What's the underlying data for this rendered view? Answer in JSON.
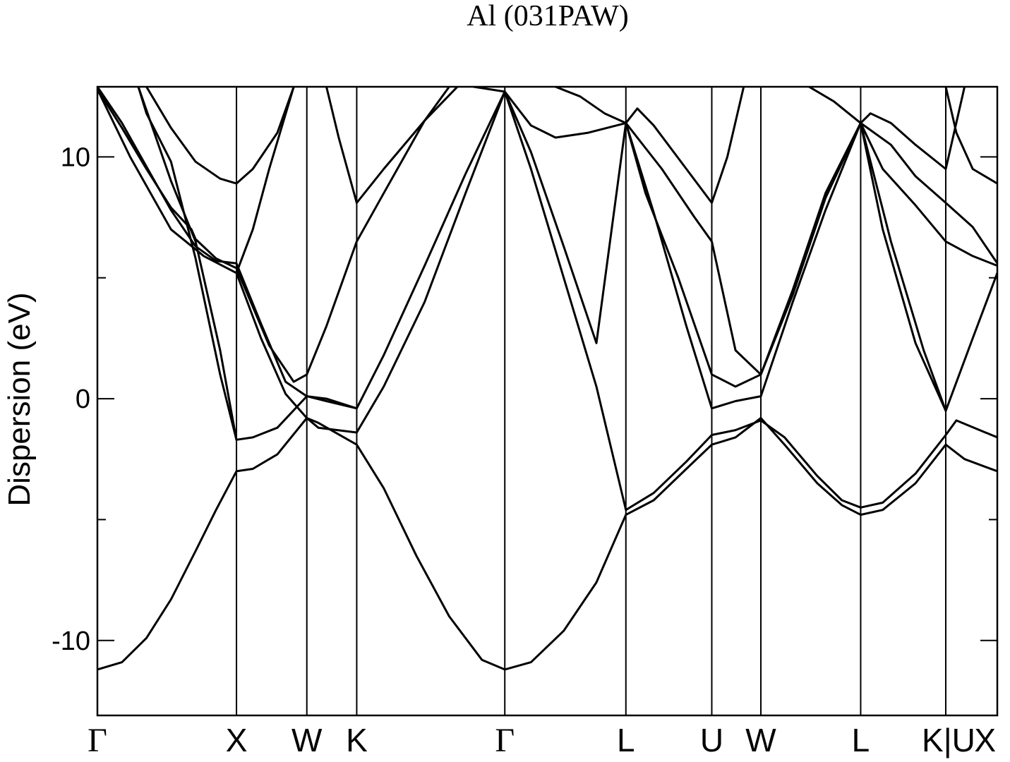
{
  "chart_data": {
    "type": "line",
    "title": "Al (031PAW)",
    "xlabel": "",
    "ylabel": "Dispersion (eV)",
    "xlim": [
      0,
      11.0
    ],
    "ylim": [
      -13.1,
      12.9
    ],
    "yticks": [
      -10,
      0,
      10
    ],
    "grid": false,
    "legend": "none",
    "line_color": "#000000",
    "kpoints": [
      {
        "label": "Γ",
        "x": 0.0
      },
      {
        "label": "X",
        "x": 1.7
      },
      {
        "label": "W",
        "x": 2.56
      },
      {
        "label": "K",
        "x": 3.17
      },
      {
        "label": "Γ",
        "x": 4.98
      },
      {
        "label": "L",
        "x": 6.46
      },
      {
        "label": "U",
        "x": 7.51
      },
      {
        "label": "W",
        "x": 8.11
      },
      {
        "label": "L",
        "x": 9.33
      },
      {
        "label": "K|U",
        "x": 10.37
      },
      {
        "label": "X",
        "x": 11.0
      }
    ],
    "series": [
      {
        "points": [
          [
            0.0,
            -11.2
          ],
          [
            0.3,
            -10.9
          ],
          [
            0.6,
            -9.9
          ],
          [
            0.9,
            -8.3
          ],
          [
            1.2,
            -6.3
          ],
          [
            1.45,
            -4.6
          ],
          [
            1.7,
            -3.0
          ],
          [
            1.9,
            -2.9
          ],
          [
            2.2,
            -2.3
          ],
          [
            2.56,
            -0.8
          ],
          [
            2.7,
            -1.0
          ],
          [
            3.17,
            -1.9
          ],
          [
            3.5,
            -3.7
          ],
          [
            3.9,
            -6.5
          ],
          [
            4.3,
            -9.0
          ],
          [
            4.7,
            -10.8
          ],
          [
            4.98,
            -11.2
          ],
          [
            5.3,
            -10.9
          ],
          [
            5.7,
            -9.6
          ],
          [
            6.1,
            -7.6
          ],
          [
            6.46,
            -4.8
          ],
          [
            6.8,
            -4.2
          ],
          [
            7.2,
            -2.9
          ],
          [
            7.51,
            -1.9
          ],
          [
            7.8,
            -1.6
          ],
          [
            8.11,
            -0.8
          ],
          [
            8.4,
            -1.9
          ],
          [
            8.8,
            -3.5
          ],
          [
            9.1,
            -4.4
          ],
          [
            9.33,
            -4.8
          ],
          [
            9.6,
            -4.6
          ],
          [
            10.0,
            -3.5
          ],
          [
            10.37,
            -1.9
          ],
          [
            10.6,
            -2.5
          ],
          [
            11.0,
            -3.0
          ]
        ]
      },
      {
        "points": [
          [
            0.0,
            12.8
          ],
          [
            0.4,
            10.0
          ],
          [
            0.9,
            7.0
          ],
          [
            1.3,
            5.9
          ],
          [
            1.7,
            5.2
          ],
          [
            2.0,
            2.5
          ],
          [
            2.3,
            0.2
          ],
          [
            2.56,
            -0.8
          ],
          [
            2.7,
            -1.2
          ],
          [
            3.17,
            -1.4
          ],
          [
            3.5,
            0.5
          ],
          [
            4.0,
            4.0
          ],
          [
            4.5,
            8.5
          ],
          [
            4.98,
            12.7
          ],
          [
            5.3,
            9.5
          ],
          [
            5.7,
            5.0
          ],
          [
            6.1,
            0.5
          ],
          [
            6.46,
            -4.6
          ],
          [
            6.8,
            -3.9
          ],
          [
            7.2,
            -2.6
          ],
          [
            7.51,
            -1.5
          ],
          [
            7.8,
            -1.3
          ],
          [
            8.11,
            -0.9
          ],
          [
            8.4,
            -1.6
          ],
          [
            8.8,
            -3.2
          ],
          [
            9.1,
            -4.2
          ],
          [
            9.33,
            -4.5
          ],
          [
            9.6,
            -4.3
          ],
          [
            10.0,
            -3.1
          ],
          [
            10.37,
            -1.5
          ],
          [
            10.5,
            -0.9
          ],
          [
            11.0,
            -1.6
          ]
        ]
      },
      {
        "points": [
          [
            0.0,
            12.9
          ],
          [
            0.3,
            11.4
          ],
          [
            0.6,
            9.6
          ],
          [
            0.9,
            7.8
          ],
          [
            1.2,
            6.3
          ],
          [
            1.45,
            5.7
          ],
          [
            1.7,
            5.6
          ],
          [
            2.0,
            3.1
          ],
          [
            2.3,
            0.7
          ],
          [
            2.56,
            0.1
          ],
          [
            2.8,
            0.0
          ],
          [
            3.17,
            -0.4
          ],
          [
            3.5,
            1.8
          ],
          [
            4.0,
            5.5
          ],
          [
            4.5,
            9.3
          ],
          [
            4.98,
            12.7
          ],
          [
            5.3,
            10.2
          ],
          [
            5.7,
            6.3
          ],
          [
            6.1,
            2.3
          ],
          [
            6.46,
            11.4
          ],
          [
            6.8,
            7.7
          ],
          [
            7.2,
            3.0
          ],
          [
            7.51,
            -0.4
          ],
          [
            7.8,
            -0.1
          ],
          [
            8.11,
            0.1
          ],
          [
            8.5,
            4.0
          ],
          [
            8.9,
            7.8
          ],
          [
            9.33,
            11.4
          ],
          [
            9.6,
            7.0
          ],
          [
            10.0,
            2.3
          ],
          [
            10.37,
            -0.5
          ],
          [
            10.7,
            2.5
          ],
          [
            11.0,
            5.2
          ]
        ]
      },
      {
        "points": [
          [
            0.0,
            12.8
          ],
          [
            0.3,
            11.2
          ],
          [
            0.6,
            9.5
          ],
          [
            0.9,
            7.9
          ],
          [
            1.15,
            7.0
          ],
          [
            1.2,
            6.6
          ],
          [
            1.45,
            5.8
          ],
          [
            1.7,
            5.4
          ],
          [
            2.1,
            2.2
          ],
          [
            2.4,
            0.7
          ],
          [
            2.56,
            1.0
          ],
          [
            2.8,
            3.0
          ],
          [
            3.17,
            6.5
          ],
          [
            3.5,
            8.5
          ],
          [
            4.0,
            11.5
          ],
          [
            4.3,
            12.9
          ]
        ]
      },
      {
        "points": [
          [
            0.5,
            12.9
          ],
          [
            0.9,
            9.0
          ],
          [
            1.2,
            6.5
          ],
          [
            1.5,
            2.0
          ],
          [
            1.7,
            -1.7
          ],
          [
            1.9,
            -1.6
          ],
          [
            2.2,
            -1.2
          ],
          [
            2.56,
            0.1
          ],
          [
            2.8,
            -0.1
          ],
          [
            3.17,
            -0.4
          ]
        ]
      },
      {
        "points": [
          [
            0.5,
            12.9
          ],
          [
            0.6,
            11.8
          ],
          [
            0.9,
            9.8
          ],
          [
            1.2,
            5.8
          ],
          [
            1.5,
            1.0
          ],
          [
            1.7,
            -1.7
          ]
        ]
      },
      {
        "points": [
          [
            0.6,
            12.9
          ],
          [
            0.9,
            11.2
          ],
          [
            1.2,
            9.8
          ],
          [
            1.5,
            9.1
          ],
          [
            1.7,
            8.9
          ],
          [
            1.9,
            9.5
          ],
          [
            2.2,
            11.0
          ],
          [
            2.4,
            12.9
          ]
        ]
      },
      {
        "points": [
          [
            1.7,
            5.2
          ],
          [
            1.9,
            7.0
          ],
          [
            2.1,
            9.5
          ],
          [
            2.4,
            12.9
          ]
        ]
      },
      {
        "points": [
          [
            2.8,
            12.9
          ],
          [
            2.95,
            10.8
          ],
          [
            3.17,
            8.1
          ],
          [
            3.5,
            9.5
          ],
          [
            4.0,
            11.5
          ],
          [
            4.4,
            12.9
          ]
        ]
      },
      {
        "points": [
          [
            4.6,
            12.9
          ],
          [
            4.98,
            12.7
          ],
          [
            5.3,
            11.3
          ],
          [
            5.6,
            10.8
          ],
          [
            6.0,
            11.0
          ],
          [
            6.46,
            11.4
          ],
          [
            6.6,
            12.0
          ],
          [
            6.8,
            11.3
          ],
          [
            7.2,
            9.5
          ],
          [
            7.51,
            8.1
          ],
          [
            7.7,
            10.0
          ],
          [
            7.9,
            12.9
          ]
        ]
      },
      {
        "points": [
          [
            5.6,
            12.9
          ],
          [
            5.9,
            12.5
          ],
          [
            6.2,
            11.8
          ],
          [
            6.46,
            11.4
          ],
          [
            6.7,
            8.5
          ],
          [
            7.1,
            5.0
          ],
          [
            7.51,
            1.0
          ],
          [
            7.8,
            0.5
          ],
          [
            8.11,
            1.0
          ],
          [
            8.5,
            4.5
          ],
          [
            8.9,
            8.5
          ],
          [
            9.33,
            11.4
          ]
        ]
      },
      {
        "points": [
          [
            6.46,
            11.4
          ],
          [
            6.9,
            9.5
          ],
          [
            7.3,
            7.5
          ],
          [
            7.51,
            6.5
          ],
          [
            7.8,
            2.0
          ],
          [
            8.11,
            1.0
          ],
          [
            8.5,
            4.3
          ],
          [
            8.9,
            8.3
          ],
          [
            9.33,
            11.4
          ]
        ]
      },
      {
        "points": [
          [
            8.7,
            12.9
          ],
          [
            9.0,
            12.3
          ],
          [
            9.33,
            11.4
          ],
          [
            9.6,
            9.5
          ],
          [
            10.0,
            8.0
          ],
          [
            10.37,
            6.5
          ],
          [
            10.7,
            5.9
          ],
          [
            11.0,
            5.5
          ]
        ]
      },
      {
        "points": [
          [
            9.33,
            11.4
          ],
          [
            9.7,
            10.5
          ],
          [
            10.0,
            9.2
          ],
          [
            10.37,
            8.1
          ],
          [
            10.7,
            7.1
          ],
          [
            11.0,
            5.6
          ]
        ]
      },
      {
        "points": [
          [
            9.33,
            11.4
          ],
          [
            9.7,
            6.5
          ],
          [
            10.1,
            2.0
          ],
          [
            10.37,
            -0.5
          ]
        ]
      },
      {
        "points": [
          [
            9.33,
            11.4
          ],
          [
            9.45,
            11.8
          ],
          [
            9.7,
            11.4
          ],
          [
            10.0,
            10.5
          ],
          [
            10.37,
            9.5
          ],
          [
            10.6,
            12.9
          ]
        ]
      },
      {
        "points": [
          [
            10.37,
            12.9
          ],
          [
            10.5,
            11.0
          ],
          [
            10.7,
            9.5
          ],
          [
            11.0,
            8.9
          ]
        ]
      }
    ]
  }
}
